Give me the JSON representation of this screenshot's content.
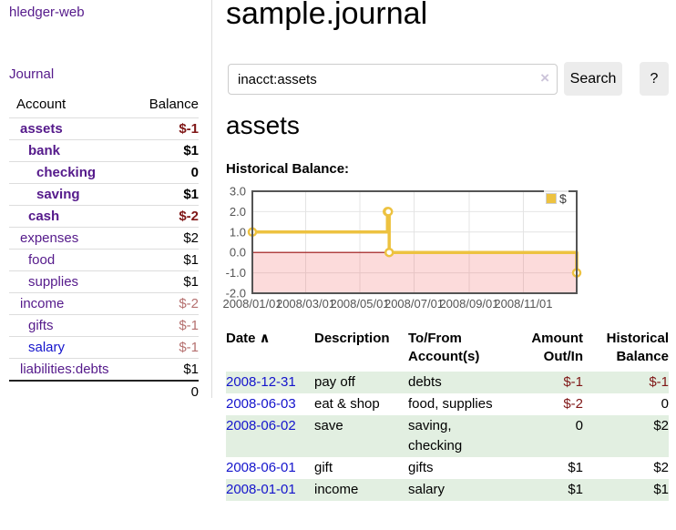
{
  "app": {
    "brand": "hledger-web"
  },
  "sidebar": {
    "journal_link": "Journal",
    "accounts": {
      "col_account": "Account",
      "col_balance": "Balance",
      "rows": [
        {
          "name": "assets",
          "indent": 0,
          "bold": true,
          "balance": "$-1",
          "balance_class": "neg-strong",
          "blue": false
        },
        {
          "name": "bank",
          "indent": 1,
          "bold": true,
          "balance": "$1",
          "balance_class": "pos-strong",
          "blue": false
        },
        {
          "name": "checking",
          "indent": 2,
          "bold": true,
          "balance": "0",
          "balance_class": "pos-strong",
          "blue": false
        },
        {
          "name": "saving",
          "indent": 2,
          "bold": true,
          "balance": "$1",
          "balance_class": "pos-strong",
          "blue": false
        },
        {
          "name": "cash",
          "indent": 1,
          "bold": true,
          "balance": "$-2",
          "balance_class": "neg-strong",
          "blue": false
        },
        {
          "name": "expenses",
          "indent": 0,
          "bold": false,
          "balance": "$2",
          "balance_class": "pos",
          "blue": false
        },
        {
          "name": "food",
          "indent": 1,
          "bold": false,
          "balance": "$1",
          "balance_class": "pos",
          "blue": false
        },
        {
          "name": "supplies",
          "indent": 1,
          "bold": false,
          "balance": "$1",
          "balance_class": "pos",
          "blue": false
        },
        {
          "name": "income",
          "indent": 0,
          "bold": false,
          "balance": "$-2",
          "balance_class": "neg-dim",
          "blue": false
        },
        {
          "name": "gifts",
          "indent": 1,
          "bold": false,
          "balance": "$-1",
          "balance_class": "neg-dim",
          "blue": false
        },
        {
          "name": "salary",
          "indent": 1,
          "bold": false,
          "balance": "$-1",
          "balance_class": "neg-dim",
          "blue": true
        },
        {
          "name": "liabilities:debts",
          "indent": 0,
          "bold": false,
          "balance": "$1",
          "balance_class": "pos",
          "blue": false
        }
      ],
      "total": "0"
    }
  },
  "main": {
    "title": "sample.journal",
    "search": {
      "value": "inacct:assets",
      "clear_icon": "×",
      "search_label": "Search",
      "help_label": "?"
    },
    "account_heading": "assets",
    "chart_heading": "Historical Balance:"
  },
  "chart_data": {
    "type": "line",
    "step": true,
    "title": "Historical Balance:",
    "series": [
      {
        "name": "$",
        "color": "#edc240",
        "points": [
          {
            "date": "2008-01-01",
            "value": 1
          },
          {
            "date": "2008-06-01",
            "value": 2
          },
          {
            "date": "2008-06-02",
            "value": 2
          },
          {
            "date": "2008-06-03",
            "value": 0
          },
          {
            "date": "2008-12-31",
            "value": -1
          }
        ]
      }
    ],
    "x_tick_labels": [
      "2008/01/01",
      "2008/03/01",
      "2008/05/01",
      "2008/07/01",
      "2008/09/01",
      "2008/11/01"
    ],
    "x_tick_days": [
      0,
      60,
      121,
      182,
      244,
      305
    ],
    "x_range_days": 365,
    "y_ticks": [
      "3.0",
      "2.0",
      "1.0",
      "0.0",
      "-1.0",
      "-2.0"
    ],
    "ylim": [
      -2,
      3
    ],
    "grid": true,
    "negative_region_shaded": true,
    "zero_line_color": "#9c1313",
    "legend": {
      "label": "$",
      "position": "top-right"
    }
  },
  "register": {
    "headers": {
      "date": "Date",
      "sort_arrow": "∧",
      "description": "Description",
      "accounts": "To/From Account(s)",
      "amount": "Amount Out/In",
      "balance": "Historical Balance"
    },
    "rows": [
      {
        "date": "2008-12-31",
        "description": "pay off",
        "accounts": "debts",
        "amount": "$-1",
        "amount_negative": true,
        "balance": "$-1",
        "balance_negative": true
      },
      {
        "date": "2008-06-03",
        "description": "eat & shop",
        "accounts": "food, supplies",
        "amount": "$-2",
        "amount_negative": true,
        "balance": "0",
        "balance_negative": false
      },
      {
        "date": "2008-06-02",
        "description": "save",
        "accounts": "saving, checking",
        "amount": "0",
        "amount_negative": false,
        "balance": "$2",
        "balance_negative": false
      },
      {
        "date": "2008-06-01",
        "description": "gift",
        "accounts": "gifts",
        "amount": "$1",
        "amount_negative": false,
        "balance": "$2",
        "balance_negative": false
      },
      {
        "date": "2008-01-01",
        "description": "income",
        "accounts": "salary",
        "amount": "$1",
        "amount_negative": false,
        "balance": "$1",
        "balance_negative": false
      }
    ]
  },
  "colors": {
    "purple_link": "#551a8b",
    "blue_link": "#1414cc",
    "negative_strong": "#7f1616",
    "negative_dim": "#b5706f",
    "row_green": "#e2efe1",
    "series_gold": "#edc240",
    "plot_border": "#545454",
    "gridline": "#e4e4e4",
    "negative_region_fill": "rgba(242,92,92,0.22)"
  }
}
